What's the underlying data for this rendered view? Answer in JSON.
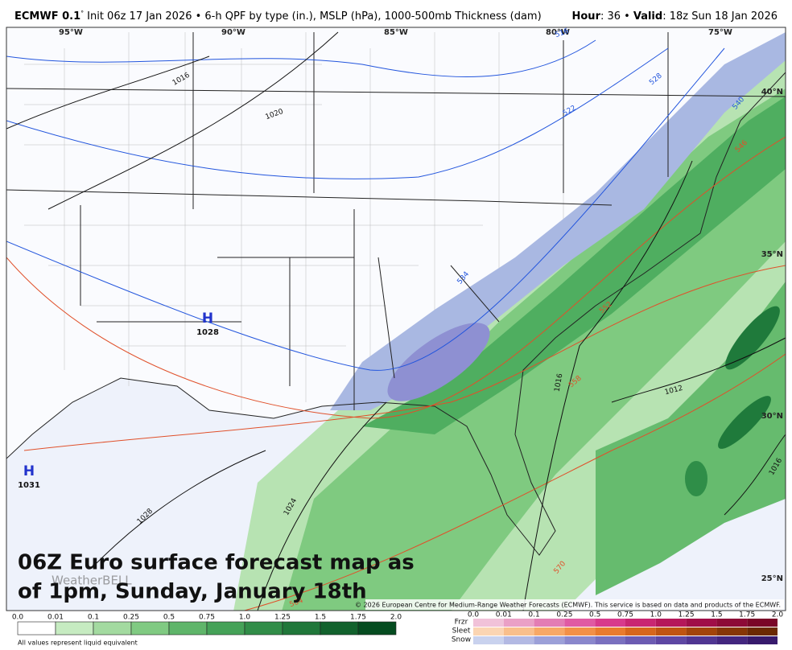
{
  "header": {
    "model": "ECMWF 0.1",
    "degree": "°",
    "description": "Init 06z 17 Jan 2026 • 6-h QPF by type (in.), MSLP (hPa), 1000-500mb Thickness (dam)",
    "hour_label": "Hour",
    "hour_value": ": 36 •",
    "valid_label": "Valid",
    "valid_value": ": 18z Sun 18 Jan 2026"
  },
  "map": {
    "longitudes": [
      "95°W",
      "90°W",
      "85°W",
      "80°W",
      "75°W"
    ],
    "latitudes": [
      "40°N",
      "35°N",
      "30°N",
      "25°N"
    ],
    "isobar_labels": [
      "1016",
      "1020",
      "1028",
      "1024",
      "1016",
      "1012",
      "1016"
    ],
    "thickness_labels": [
      "516",
      "522",
      "528",
      "534",
      "540",
      "546",
      "552",
      "558",
      "564",
      "570"
    ],
    "highs": [
      {
        "symbol": "H",
        "pressure": "1028"
      },
      {
        "symbol": "H",
        "pressure": "1031"
      }
    ],
    "overlay_text": [
      "06Z Euro surface forecast map as",
      "of 1pm, Sunday, January 18th"
    ],
    "watermark": "WeatherBELL",
    "copyright": "© 2026 European Centre for Medium-Range Weather Forecasts (ECMWF). This service is based on data and products of the ECMWF."
  },
  "legend": {
    "rain_values": [
      "0.0",
      "0.01",
      "0.1",
      "0.25",
      "0.5",
      "0.75",
      "1.0",
      "1.25",
      "1.5",
      "1.75",
      "2.0"
    ],
    "note": "All values represent liquid equivalent",
    "winter_types": [
      "Frzr",
      "Sleet",
      "Snow"
    ],
    "winter_values": [
      "0.0",
      "0.01",
      "0.1",
      "0.25",
      "0.5",
      "0.75",
      "1.0",
      "1.25",
      "1.5",
      "1.75",
      "2.0"
    ]
  }
}
